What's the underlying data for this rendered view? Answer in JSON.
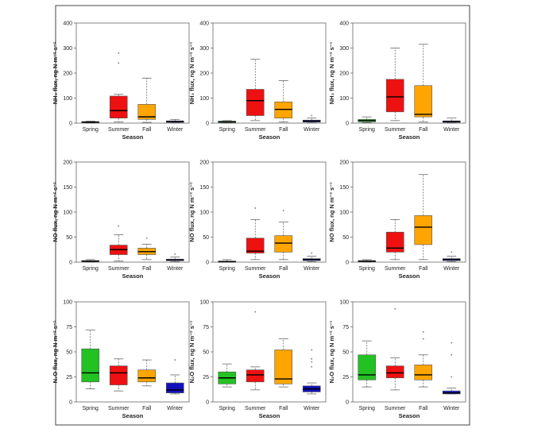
{
  "chart_data": {
    "type": "boxplot",
    "layout": {
      "rows": 3,
      "cols": 3
    },
    "categories": [
      "Spring",
      "Summer",
      "Fall",
      "Winter"
    ],
    "category_colors": [
      "#22c222",
      "#ee1111",
      "#ffa500",
      "#1111bb"
    ],
    "xlabel": "Season",
    "panels": [
      {
        "ylabel": "NH₃ flux, ng N m⁻² s⁻¹",
        "ylim": [
          0,
          400
        ],
        "yticks": [
          0,
          100,
          200,
          300,
          400
        ],
        "boxes": [
          {
            "min": 0,
            "q1": 2,
            "median": 4,
            "q3": 6,
            "max": 8,
            "outliers": []
          },
          {
            "min": 5,
            "q1": 20,
            "median": 50,
            "q3": 108,
            "max": 115,
            "outliers": [
              240,
              280
            ]
          },
          {
            "min": 3,
            "q1": 15,
            "median": 25,
            "q3": 75,
            "max": 180,
            "outliers": []
          },
          {
            "min": 1,
            "q1": 3,
            "median": 6,
            "q3": 9,
            "max": 15,
            "outliers": []
          }
        ]
      },
      {
        "ylabel": "NH₃ flux, ng N m⁻² s⁻¹",
        "ylim": [
          0,
          400
        ],
        "yticks": [
          0,
          100,
          200,
          300,
          400
        ],
        "boxes": [
          {
            "min": 0,
            "q1": 2,
            "median": 5,
            "q3": 8,
            "max": 10,
            "outliers": []
          },
          {
            "min": 10,
            "q1": 30,
            "median": 90,
            "q3": 135,
            "max": 255,
            "outliers": []
          },
          {
            "min": 5,
            "q1": 20,
            "median": 55,
            "q3": 85,
            "max": 170,
            "outliers": []
          },
          {
            "min": 1,
            "q1": 4,
            "median": 8,
            "q3": 12,
            "max": 20,
            "outliers": [
              30
            ]
          }
        ]
      },
      {
        "ylabel": "NH₃ flux, ng N m⁻² s⁻¹",
        "ylim": [
          0,
          400
        ],
        "yticks": [
          0,
          100,
          200,
          300,
          400
        ],
        "boxes": [
          {
            "min": 2,
            "q1": 5,
            "median": 10,
            "q3": 15,
            "max": 25,
            "outliers": []
          },
          {
            "min": 10,
            "q1": 45,
            "median": 105,
            "q3": 175,
            "max": 300,
            "outliers": []
          },
          {
            "min": 5,
            "q1": 25,
            "median": 35,
            "q3": 150,
            "max": 315,
            "outliers": []
          },
          {
            "min": 1,
            "q1": 3,
            "median": 6,
            "q3": 9,
            "max": 20,
            "outliers": []
          }
        ]
      },
      {
        "ylabel": "NO flux, ng N m⁻² s⁻¹",
        "ylim": [
          0,
          200
        ],
        "yticks": [
          0,
          50,
          100,
          150,
          200
        ],
        "boxes": [
          {
            "min": 0,
            "q1": 1,
            "median": 2,
            "q3": 3,
            "max": 5,
            "outliers": []
          },
          {
            "min": 2,
            "q1": 15,
            "median": 25,
            "q3": 34,
            "max": 55,
            "outliers": [
              72
            ]
          },
          {
            "min": 5,
            "q1": 15,
            "median": 21,
            "q3": 28,
            "max": 36,
            "outliers": [
              48
            ]
          },
          {
            "min": 1,
            "q1": 3,
            "median": 4,
            "q3": 6,
            "max": 10,
            "outliers": [
              16
            ]
          }
        ]
      },
      {
        "ylabel": "NO flux, ng N m⁻² s⁻¹",
        "ylim": [
          0,
          200
        ],
        "yticks": [
          0,
          50,
          100,
          150,
          200
        ],
        "boxes": [
          {
            "min": 0,
            "q1": 0,
            "median": 1,
            "q3": 2,
            "max": 5,
            "outliers": []
          },
          {
            "min": 5,
            "q1": 18,
            "median": 22,
            "q3": 48,
            "max": 85,
            "outliers": [
              108
            ]
          },
          {
            "min": 5,
            "q1": 20,
            "median": 38,
            "q3": 53,
            "max": 80,
            "outliers": [
              103
            ]
          },
          {
            "min": 1,
            "q1": 3,
            "median": 5,
            "q3": 7,
            "max": 12,
            "outliers": [
              18
            ]
          }
        ]
      },
      {
        "ylabel": "NO flux, ng N m⁻² s⁻¹",
        "ylim": [
          0,
          200
        ],
        "yticks": [
          0,
          50,
          100,
          150,
          200
        ],
        "boxes": [
          {
            "min": 0,
            "q1": 1,
            "median": 2,
            "q3": 3,
            "max": 5,
            "outliers": []
          },
          {
            "min": 5,
            "q1": 20,
            "median": 28,
            "q3": 60,
            "max": 85,
            "outliers": []
          },
          {
            "min": 5,
            "q1": 35,
            "median": 70,
            "q3": 93,
            "max": 175,
            "outliers": []
          },
          {
            "min": 1,
            "q1": 3,
            "median": 5,
            "q3": 7,
            "max": 12,
            "outliers": [
              20
            ]
          }
        ]
      },
      {
        "ylabel": "N₂O flux, ng N m⁻² s⁻¹",
        "ylim": [
          0,
          100
        ],
        "yticks": [
          0,
          25,
          50,
          75,
          100
        ],
        "boxes": [
          {
            "min": 13,
            "q1": 20,
            "median": 29,
            "q3": 53,
            "max": 72,
            "outliers": []
          },
          {
            "min": 11,
            "q1": 17,
            "median": 29,
            "q3": 36,
            "max": 43,
            "outliers": []
          },
          {
            "min": 16,
            "q1": 20,
            "median": 24,
            "q3": 32,
            "max": 42,
            "outliers": []
          },
          {
            "min": 8,
            "q1": 9,
            "median": 12,
            "q3": 19,
            "max": 27,
            "outliers": [
              42
            ]
          }
        ]
      },
      {
        "ylabel": "N₂O flux, ng N m⁻² s⁻¹",
        "ylim": [
          0,
          100
        ],
        "yticks": [
          0,
          25,
          50,
          75,
          100
        ],
        "boxes": [
          {
            "min": 15,
            "q1": 18,
            "median": 24,
            "q3": 30,
            "max": 38,
            "outliers": []
          },
          {
            "min": 12,
            "q1": 20,
            "median": 27,
            "q3": 32,
            "max": 35,
            "outliers": [
              90
            ]
          },
          {
            "min": 15,
            "q1": 18,
            "median": 23,
            "q3": 52,
            "max": 63,
            "outliers": []
          },
          {
            "min": 8,
            "q1": 10,
            "median": 13,
            "q3": 16,
            "max": 19,
            "outliers": [
              35,
              40,
              43,
              52
            ]
          }
        ]
      },
      {
        "ylabel": "N₂O flux, ng N m⁻² s⁻¹",
        "ylim": [
          0,
          100
        ],
        "yticks": [
          0,
          25,
          50,
          75,
          100
        ],
        "boxes": [
          {
            "min": 15,
            "q1": 22,
            "median": 27,
            "q3": 47,
            "max": 61,
            "outliers": []
          },
          {
            "min": 12,
            "q1": 24,
            "median": 29,
            "q3": 36,
            "max": 44,
            "outliers": [
              93
            ]
          },
          {
            "min": 15,
            "q1": 22,
            "median": 27,
            "q3": 37,
            "max": 47,
            "outliers": [
              63,
              70
            ]
          },
          {
            "min": 8,
            "q1": 8,
            "median": 9,
            "q3": 11,
            "max": 14,
            "outliers": [
              25,
              47,
              59
            ]
          }
        ]
      }
    ]
  }
}
